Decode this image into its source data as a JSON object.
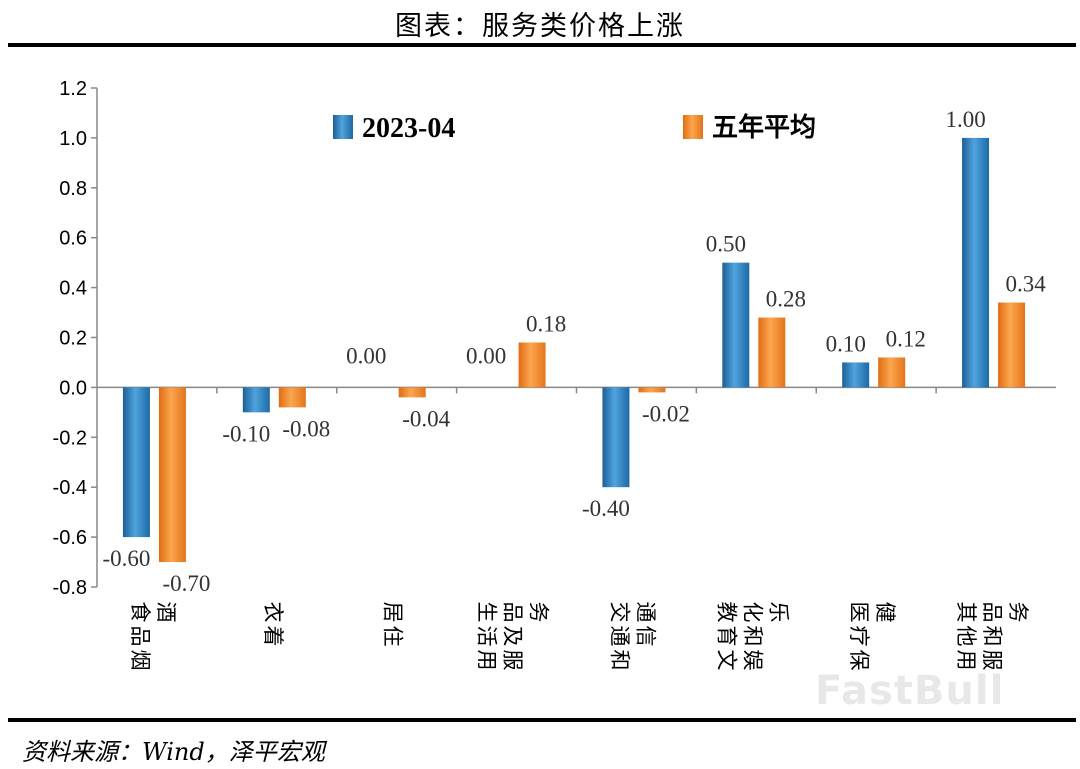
{
  "figure_title": "图表：服务类价格上涨",
  "source": "资料来源：Wind，泽平宏观",
  "watermark": "FastBull",
  "colors": {
    "series1": "#2e86c1",
    "series2": "#f08a2c"
  },
  "chart_data": {
    "type": "bar",
    "title": "",
    "categories": [
      "食品烟酒",
      "衣着",
      "居住",
      "生活用品及服务",
      "交通和通信",
      "教育文化和娱乐",
      "医疗保健",
      "其他用品和服务"
    ],
    "series": [
      {
        "name": "2023-04",
        "values": [
          -0.6,
          -0.1,
          0.0,
          0.0,
          -0.4,
          0.5,
          0.1,
          1.0
        ]
      },
      {
        "name": "五年平均",
        "values": [
          -0.7,
          -0.08,
          -0.04,
          0.18,
          -0.02,
          0.28,
          0.12,
          0.34
        ]
      }
    ],
    "data_labels": [
      [
        "-0.60",
        "-0.10",
        "0.00",
        "0.00",
        "-0.40",
        "0.50",
        "0.10",
        "1.00"
      ],
      [
        "-0.70",
        "-0.08",
        "-0.04",
        "0.18",
        "-0.02",
        "0.28",
        "0.12",
        "0.34"
      ]
    ],
    "ylim": [
      -0.8,
      1.2
    ],
    "yticks": [
      "1.2",
      "1.0",
      "0.8",
      "0.6",
      "0.4",
      "0.2",
      "0.0",
      "-0.2",
      "-0.4",
      "-0.6",
      "-0.8"
    ],
    "legend": "top-center",
    "grid": false,
    "xlabel": "",
    "ylabel": ""
  }
}
